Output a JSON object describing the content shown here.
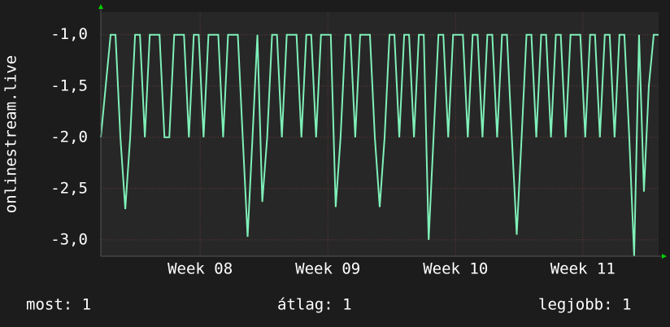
{
  "chart_data": {
    "type": "line",
    "y_label": "onlinestream.live",
    "series": [
      {
        "name": "onlinestream.live",
        "color": "#7ff0b8",
        "values": [
          -2,
          -1.5,
          -1,
          -1,
          -2,
          -2.7,
          -2,
          -1,
          -1,
          -2,
          -1,
          -1,
          -1,
          -2,
          -2,
          -1,
          -1,
          -1,
          -2,
          -1,
          -1,
          -2,
          -1,
          -1,
          -1,
          -2,
          -1,
          -1,
          -1,
          -2,
          -2.97,
          -2,
          -1,
          -2.63,
          -2,
          -1,
          -1,
          -2,
          -1,
          -1,
          -1,
          -2,
          -1,
          -1,
          -2,
          -1,
          -1,
          -1,
          -2.68,
          -2,
          -1,
          -1,
          -2,
          -1,
          -1,
          -1,
          -2,
          -2.68,
          -2,
          -1,
          -1,
          -2,
          -1,
          -1,
          -2,
          -1,
          -1,
          -3,
          -2,
          -1,
          -1,
          -2,
          -1,
          -1,
          -1,
          -2,
          -1,
          -1,
          -2,
          -1,
          -1,
          -2,
          -1,
          -1,
          -2,
          -2.95,
          -2,
          -1,
          -1,
          -2,
          -1,
          -1,
          -2,
          -1,
          -1,
          -2,
          -1,
          -1,
          -1,
          -2,
          -1,
          -1,
          -2,
          -1,
          -1,
          -2,
          -1,
          -1,
          -2,
          -3.16,
          -1,
          -2.53,
          -1.5,
          -1,
          -1
        ]
      }
    ],
    "xlim": [
      0,
      114
    ],
    "xticks": [
      {
        "value": 20.3,
        "label": "Week 08"
      },
      {
        "value": 46.4,
        "label": "Week 09"
      },
      {
        "value": 72.5,
        "label": "Week 10"
      },
      {
        "value": 98.5,
        "label": "Week 11"
      }
    ],
    "ylim": [
      -3.16,
      -0.78
    ],
    "yticks": [
      {
        "value": -1,
        "label": "-1,0"
      },
      {
        "value": -1.5,
        "label": "-1,5"
      },
      {
        "value": -2,
        "label": "-2,0"
      },
      {
        "value": -2.5,
        "label": "-2,5"
      },
      {
        "value": -3,
        "label": "-3,0"
      }
    ],
    "grid": true,
    "footer": {
      "current": "most: 1",
      "average": "átlag: 1",
      "best": "legjobb: 1"
    }
  }
}
